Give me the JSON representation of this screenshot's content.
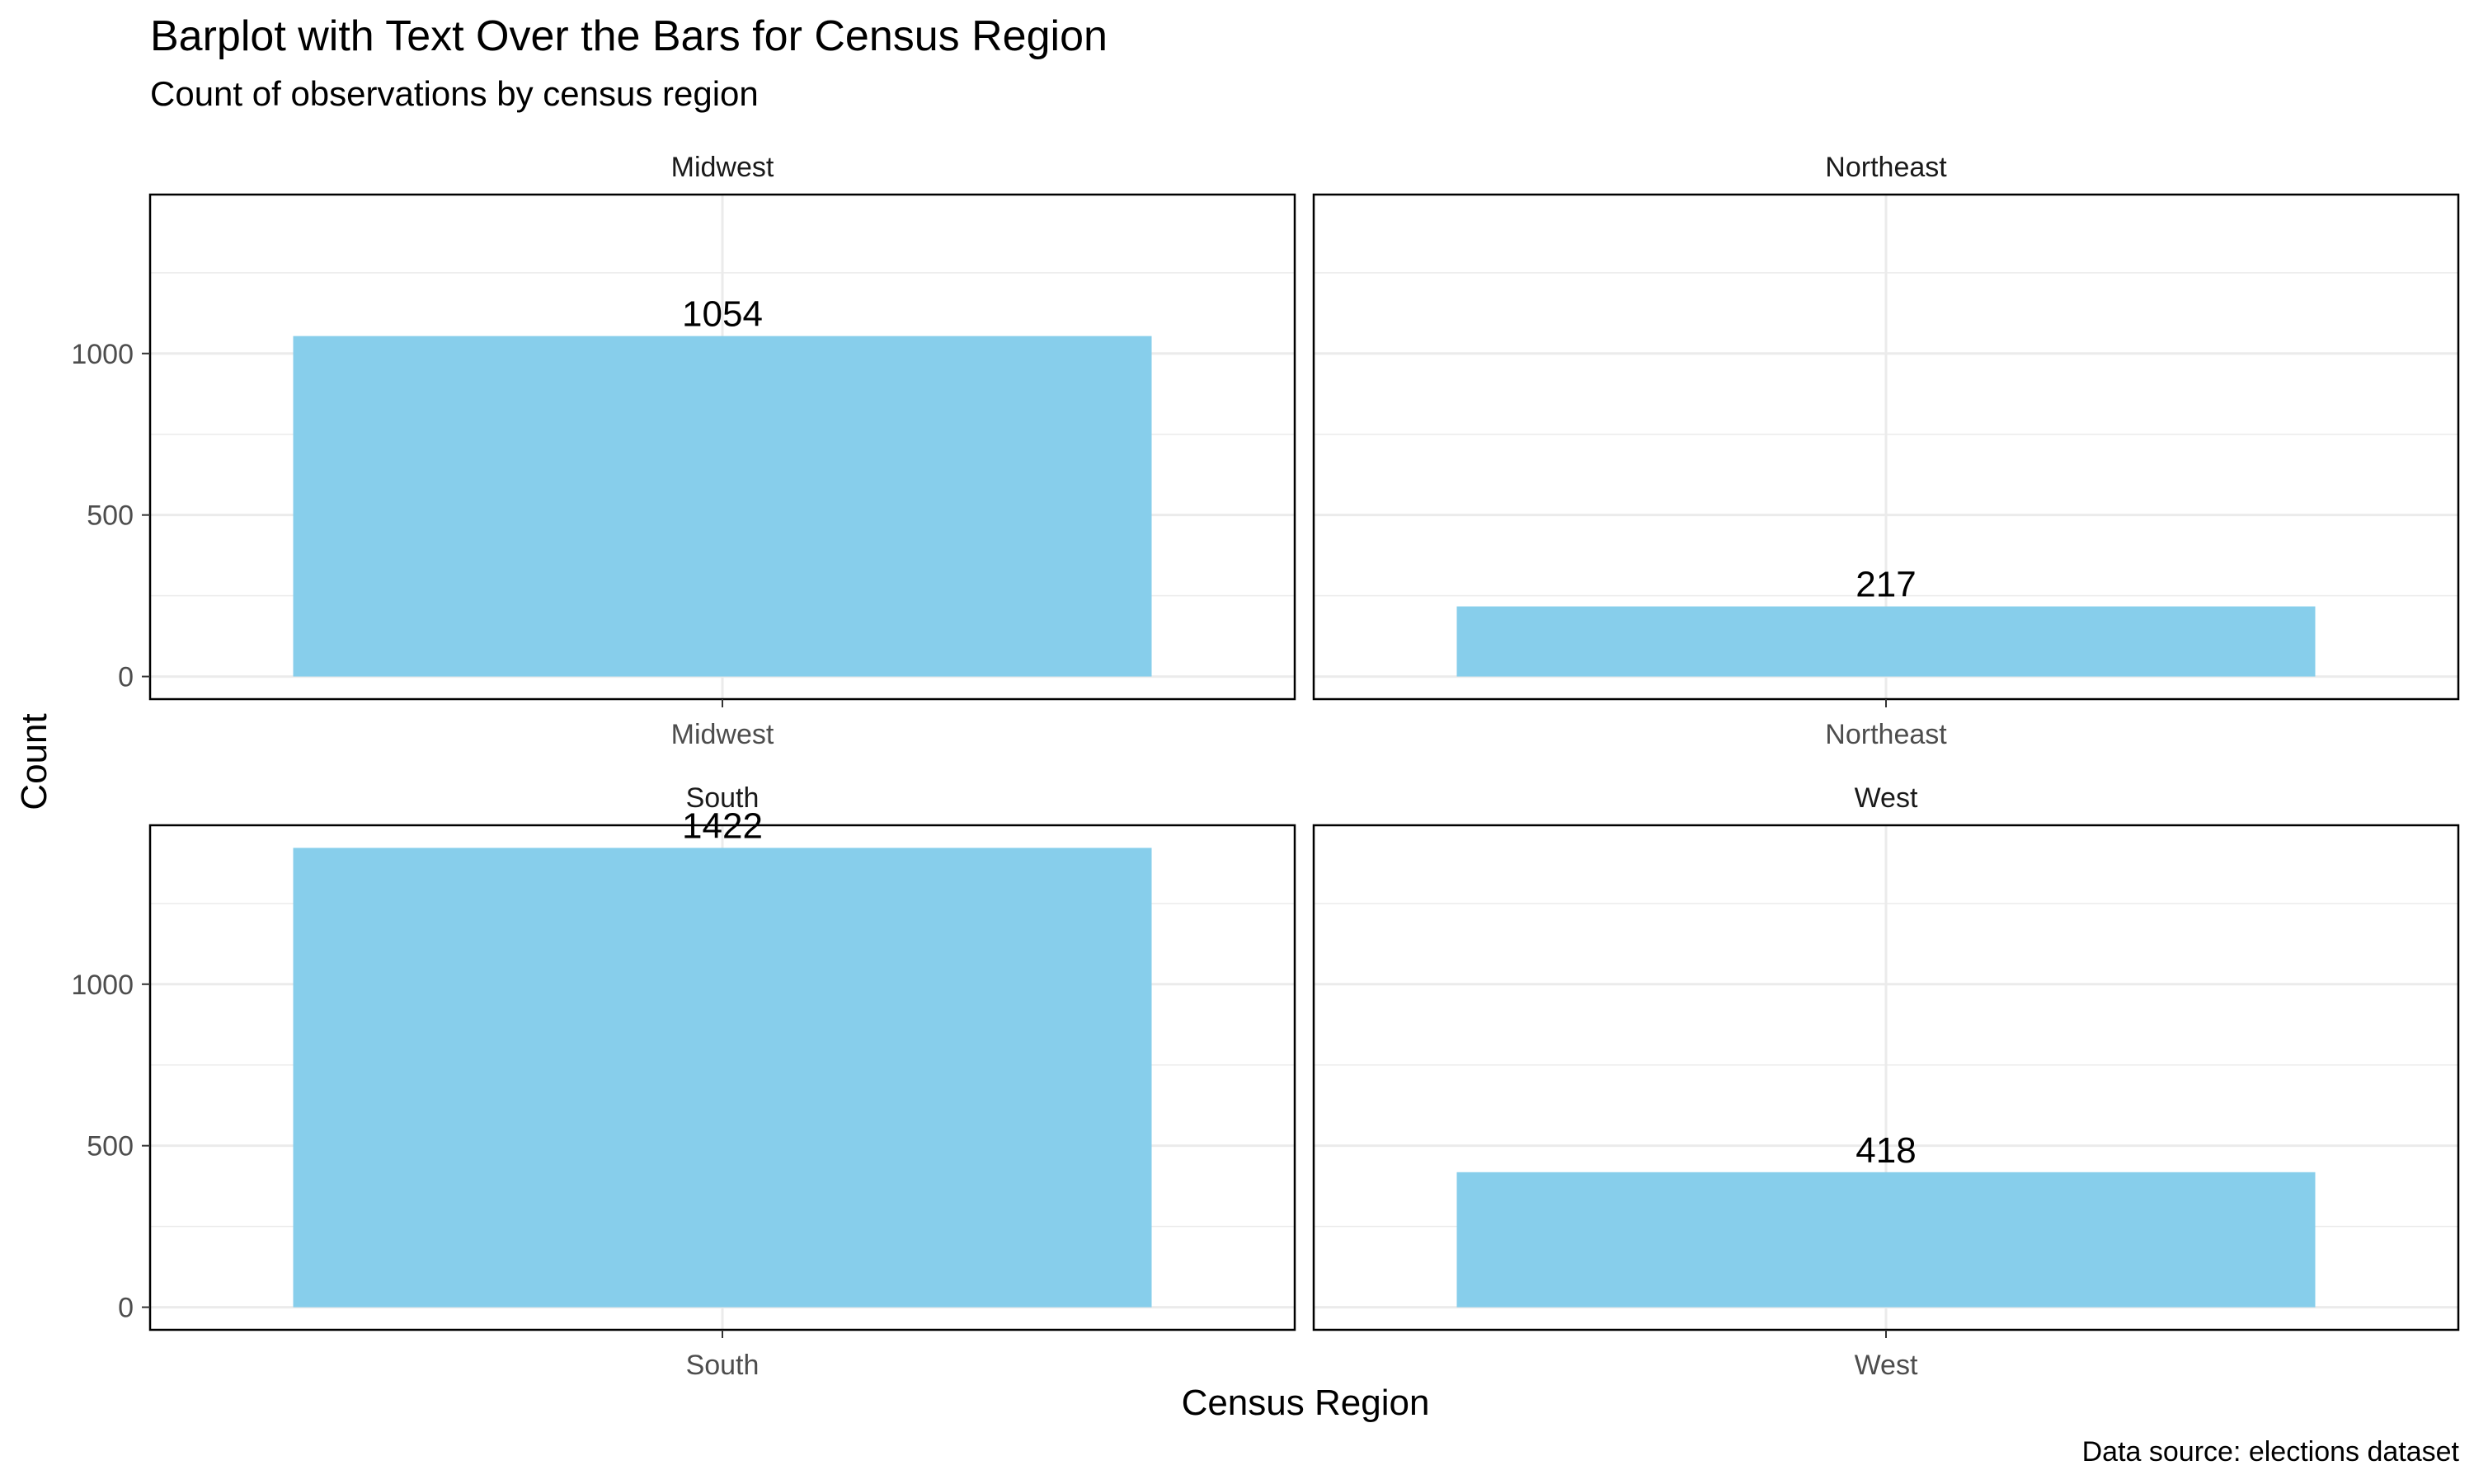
{
  "chart_data": {
    "type": "bar",
    "title": "Barplot with Text Over the Bars for Census Region",
    "subtitle": "Count of observations by census region",
    "xlabel": "Census Region",
    "ylabel": "Count",
    "caption": "Data source: elections dataset",
    "categories": [
      "Midwest",
      "Northeast",
      "South",
      "West"
    ],
    "values": [
      1054,
      217,
      1422,
      418
    ],
    "value_labels": [
      "1054",
      "217",
      "1422",
      "418"
    ],
    "facets": [
      {
        "strip": "Midwest",
        "category": "Midwest",
        "value": 1054,
        "label": "1054"
      },
      {
        "strip": "Northeast",
        "category": "Northeast",
        "value": 217,
        "label": "217"
      },
      {
        "strip": "South",
        "category": "South",
        "value": 1422,
        "label": "1422"
      },
      {
        "strip": "West",
        "category": "West",
        "value": 418,
        "label": "418"
      }
    ],
    "facet_layout": "2x2 grid, shared y axis per row",
    "ylim": [
      -70,
      1492
    ],
    "yticks": [
      0,
      500,
      1000
    ],
    "ytick_labels": [
      "0",
      "500",
      "1000"
    ],
    "grid": true,
    "legend": "none",
    "bar_color": "#87CEEB",
    "text_color": "#000000"
  }
}
